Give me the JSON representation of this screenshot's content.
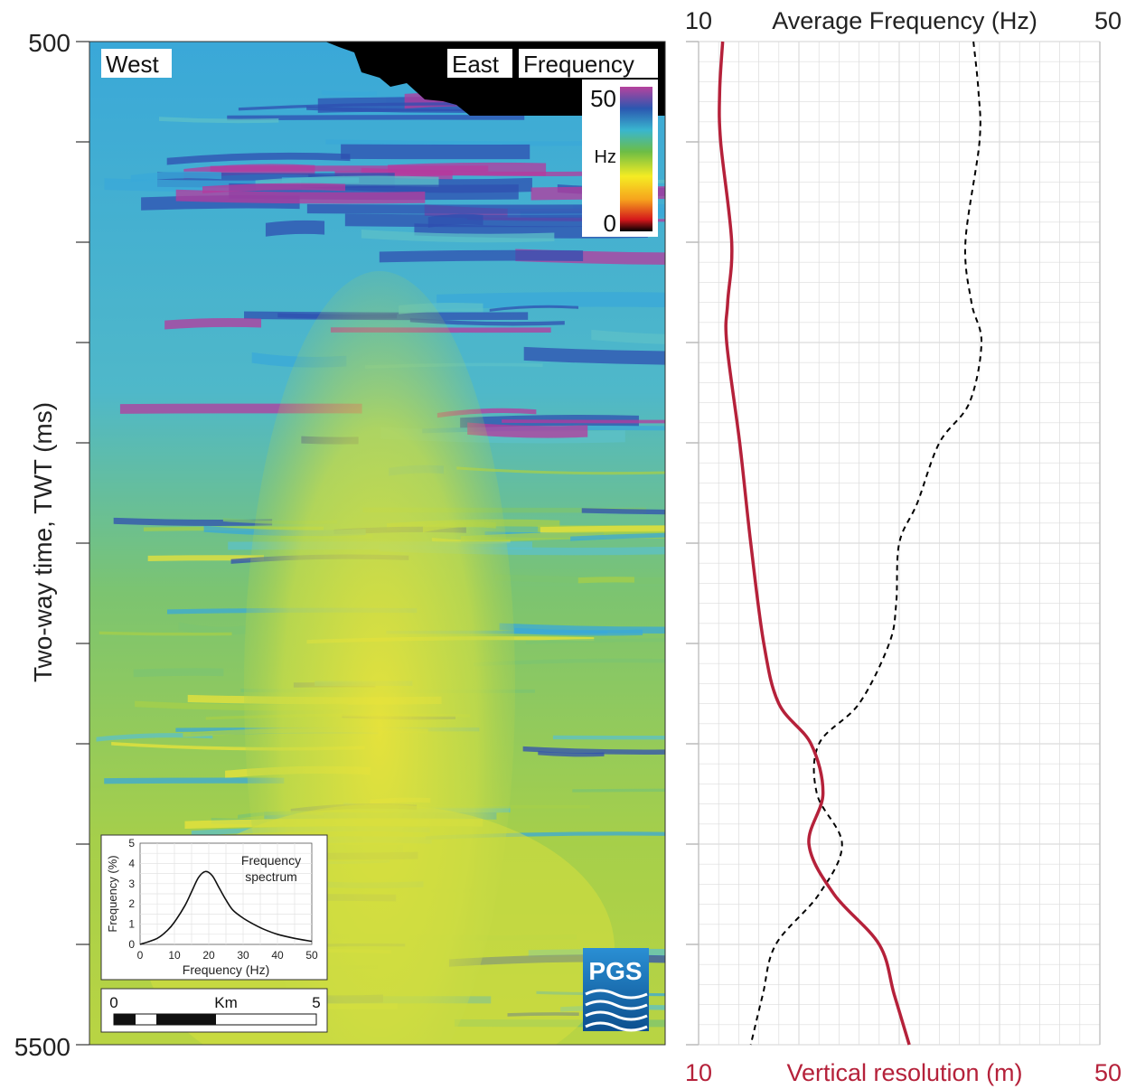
{
  "seismic_panel": {
    "ytick_top": "500",
    "ytick_bottom": "5500",
    "ylabel": "Two-way time, TWT (ms)",
    "label_west": "West",
    "label_east": "East",
    "label_frequency": "Frequency",
    "colorbar": {
      "max": "50",
      "unit": "Hz",
      "min": "0"
    }
  },
  "inset": {
    "title_line1": "Frequency",
    "title_line2": "spectrum",
    "xlabel": "Frequency (Hz)",
    "ylabel": "Frequency (%)",
    "xticks": [
      "0",
      "10",
      "20",
      "30",
      "40",
      "50"
    ],
    "yticks": [
      "0",
      "1",
      "2",
      "3",
      "4",
      "5"
    ]
  },
  "scalebar": {
    "start": "0",
    "unit": "Km",
    "end": "5"
  },
  "logo": {
    "text": "PGS"
  },
  "right_panel": {
    "top_axis": {
      "min_label": "10",
      "title": "Average Frequency (Hz)",
      "max_label": "50"
    },
    "bottom_axis": {
      "min_label": "10",
      "title": "Vertical resolution (m)",
      "max_label": "50"
    }
  },
  "colors": {
    "resolution_curve": "#b5213a",
    "frequency_curve": "#000000",
    "grid": "#dcdcdc",
    "seismic_background": "#000000"
  },
  "chart_data": [
    {
      "type": "line",
      "title": "Average Frequency (Hz)",
      "y_label": "Two-way time, TWT (ms)",
      "y_range": [
        500,
        5500
      ],
      "x_range": [
        10,
        50
      ],
      "series": [
        {
          "name": "Average Frequency (Hz)",
          "style": "dashed",
          "points": [
            {
              "twt": 500,
              "value": 37.4
            },
            {
              "twt": 750,
              "value": 37.9
            },
            {
              "twt": 1000,
              "value": 38.0
            },
            {
              "twt": 1500,
              "value": 36.6
            },
            {
              "twt": 1800,
              "value": 37.2
            },
            {
              "twt": 2000,
              "value": 38.2
            },
            {
              "twt": 2300,
              "value": 37.0
            },
            {
              "twt": 2500,
              "value": 34.0
            },
            {
              "twt": 2800,
              "value": 31.8
            },
            {
              "twt": 3000,
              "value": 30.0
            },
            {
              "twt": 3300,
              "value": 29.7
            },
            {
              "twt": 3500,
              "value": 29.0
            },
            {
              "twt": 3800,
              "value": 26.0
            },
            {
              "twt": 4000,
              "value": 22.0
            },
            {
              "twt": 4250,
              "value": 21.8
            },
            {
              "twt": 4500,
              "value": 24.3
            },
            {
              "twt": 4750,
              "value": 22.0
            },
            {
              "twt": 5000,
              "value": 17.7
            },
            {
              "twt": 5250,
              "value": 16.4
            },
            {
              "twt": 5500,
              "value": 15.2
            }
          ]
        },
        {
          "name": "Vertical resolution (m)",
          "style": "solid",
          "points": [
            {
              "twt": 500,
              "value": 12.4
            },
            {
              "twt": 750,
              "value": 12.1
            },
            {
              "twt": 1000,
              "value": 12.2
            },
            {
              "twt": 1500,
              "value": 13.3
            },
            {
              "twt": 1800,
              "value": 12.9
            },
            {
              "twt": 2000,
              "value": 12.8
            },
            {
              "twt": 2500,
              "value": 14.1
            },
            {
              "twt": 3000,
              "value": 15.2
            },
            {
              "twt": 3500,
              "value": 16.5
            },
            {
              "twt": 3800,
              "value": 18.0
            },
            {
              "twt": 4000,
              "value": 21.2
            },
            {
              "twt": 4250,
              "value": 22.4
            },
            {
              "twt": 4500,
              "value": 21.0
            },
            {
              "twt": 4750,
              "value": 23.5
            },
            {
              "twt": 5000,
              "value": 28.0
            },
            {
              "twt": 5250,
              "value": 29.5
            },
            {
              "twt": 5500,
              "value": 31.0
            }
          ]
        }
      ]
    },
    {
      "type": "line",
      "title": "Frequency spectrum",
      "x_label": "Frequency (Hz)",
      "y_label": "Frequency (%)",
      "x_range": [
        0,
        50
      ],
      "y_range": [
        0,
        5
      ],
      "series": [
        {
          "name": "Frequency spectrum",
          "points": [
            {
              "x": 0,
              "y": 0.0
            },
            {
              "x": 5,
              "y": 0.3
            },
            {
              "x": 8,
              "y": 0.7
            },
            {
              "x": 10,
              "y": 1.1
            },
            {
              "x": 13,
              "y": 1.9
            },
            {
              "x": 15,
              "y": 2.6
            },
            {
              "x": 17,
              "y": 3.3
            },
            {
              "x": 19,
              "y": 3.6
            },
            {
              "x": 21,
              "y": 3.4
            },
            {
              "x": 23,
              "y": 2.8
            },
            {
              "x": 25,
              "y": 2.2
            },
            {
              "x": 27,
              "y": 1.7
            },
            {
              "x": 30,
              "y": 1.3
            },
            {
              "x": 33,
              "y": 1.0
            },
            {
              "x": 36,
              "y": 0.75
            },
            {
              "x": 40,
              "y": 0.5
            },
            {
              "x": 45,
              "y": 0.3
            },
            {
              "x": 50,
              "y": 0.15
            }
          ]
        }
      ]
    }
  ]
}
